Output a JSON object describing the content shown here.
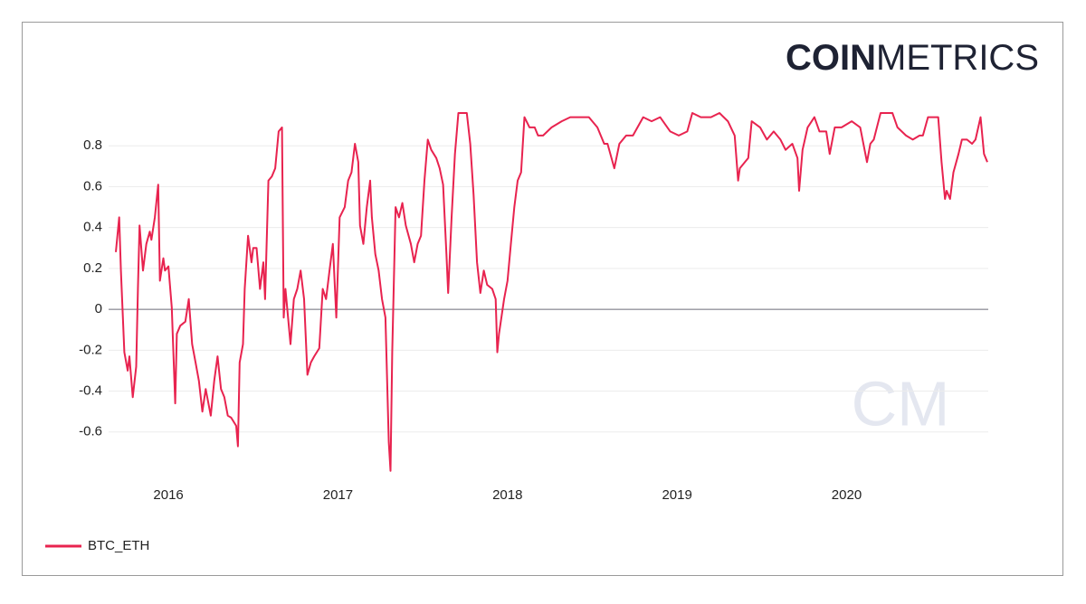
{
  "chart_data": {
    "type": "line",
    "logo": {
      "bold": "COIN",
      "light": "METRICS"
    },
    "watermark": "CM",
    "x": [
      2015.69,
      2015.71,
      2015.72,
      2015.74,
      2015.76,
      2015.77,
      2015.79,
      2015.81,
      2015.82,
      2015.83,
      2015.85,
      2015.87,
      2015.89,
      2015.9,
      2015.92,
      2015.94,
      2015.95,
      2015.97,
      2015.98,
      2016.0,
      2016.02,
      2016.04,
      2016.05,
      2016.07,
      2016.1,
      2016.12,
      2016.14,
      2016.16,
      2016.18,
      2016.2,
      2016.22,
      2016.25,
      2016.27,
      2016.29,
      2016.31,
      2016.33,
      2016.35,
      2016.37,
      2016.4,
      2016.41,
      2016.42,
      2016.44,
      2016.45,
      2016.47,
      2016.49,
      2016.5,
      2016.52,
      2016.54,
      2016.56,
      2016.57,
      2016.59,
      2016.61,
      2016.63,
      2016.65,
      2016.67,
      2016.68,
      2016.69,
      2016.72,
      2016.74,
      2016.76,
      2016.78,
      2016.8,
      2016.82,
      2016.84,
      2016.86,
      2016.89,
      2016.91,
      2016.93,
      2016.95,
      2016.97,
      2016.99,
      2017.01,
      2017.04,
      2017.06,
      2017.08,
      2017.1,
      2017.12,
      2017.13,
      2017.15,
      2017.17,
      2017.19,
      2017.2,
      2017.22,
      2017.24,
      2017.26,
      2017.28,
      2017.3,
      2017.31,
      2017.32,
      2017.34,
      2017.36,
      2017.38,
      2017.4,
      2017.43,
      2017.45,
      2017.47,
      2017.49,
      2017.51,
      2017.53,
      2017.55,
      2017.58,
      2017.6,
      2017.62,
      2017.64,
      2017.65,
      2017.67,
      2017.69,
      2017.71,
      2017.74,
      2017.76,
      2017.78,
      2017.8,
      2017.82,
      2017.84,
      2017.86,
      2017.88,
      2017.91,
      2017.93,
      2017.94,
      2017.95,
      2017.98,
      2018.0,
      2018.02,
      2018.04,
      2018.06,
      2018.08,
      2018.1,
      2018.13,
      2018.16,
      2018.18,
      2018.21,
      2018.26,
      2018.32,
      2018.37,
      2018.42,
      2018.48,
      2018.53,
      2018.57,
      2018.59,
      2018.63,
      2018.66,
      2018.7,
      2018.74,
      2018.8,
      2018.85,
      2018.9,
      2018.96,
      2019.01,
      2019.06,
      2019.09,
      2019.14,
      2019.2,
      2019.25,
      2019.3,
      2019.34,
      2019.36,
      2019.37,
      2019.4,
      2019.42,
      2019.44,
      2019.49,
      2019.53,
      2019.57,
      2019.61,
      2019.64,
      2019.68,
      2019.71,
      2019.72,
      2019.74,
      2019.77,
      2019.81,
      2019.84,
      2019.88,
      2019.9,
      2019.93,
      2019.97,
      2020.03,
      2020.08,
      2020.12,
      2020.14,
      2020.16,
      2020.2,
      2020.27,
      2020.3,
      2020.35,
      2020.39,
      2020.43,
      2020.45,
      2020.48,
      2020.54,
      2020.56,
      2020.58,
      2020.59,
      2020.61,
      2020.63,
      2020.66,
      2020.68,
      2020.71,
      2020.74,
      2020.76,
      2020.79,
      2020.81,
      2020.83
    ],
    "series": [
      {
        "name": "BTC_ETH",
        "color": "#e8234f",
        "values": [
          0.28,
          0.45,
          0.19,
          -0.21,
          -0.3,
          -0.23,
          -0.43,
          -0.28,
          0.1,
          0.41,
          0.19,
          0.32,
          0.38,
          0.34,
          0.45,
          0.61,
          0.14,
          0.25,
          0.19,
          0.21,
          0.01,
          -0.46,
          -0.12,
          -0.08,
          -0.06,
          0.05,
          -0.17,
          -0.26,
          -0.35,
          -0.5,
          -0.39,
          -0.52,
          -0.35,
          -0.23,
          -0.39,
          -0.43,
          -0.52,
          -0.53,
          -0.57,
          -0.67,
          -0.26,
          -0.17,
          0.1,
          0.36,
          0.23,
          0.3,
          0.3,
          0.1,
          0.23,
          0.05,
          0.63,
          0.65,
          0.69,
          0.87,
          0.89,
          -0.04,
          0.1,
          -0.17,
          0.05,
          0.1,
          0.19,
          0.05,
          -0.32,
          -0.26,
          -0.23,
          -0.19,
          0.1,
          0.05,
          0.19,
          0.32,
          -0.04,
          0.45,
          0.5,
          0.63,
          0.67,
          0.81,
          0.72,
          0.41,
          0.32,
          0.5,
          0.63,
          0.45,
          0.27,
          0.19,
          0.05,
          -0.04,
          -0.65,
          -0.79,
          -0.21,
          0.5,
          0.45,
          0.52,
          0.41,
          0.32,
          0.23,
          0.32,
          0.36,
          0.63,
          0.83,
          0.78,
          0.74,
          0.69,
          0.61,
          0.27,
          0.08,
          0.45,
          0.76,
          0.96,
          0.96,
          0.96,
          0.81,
          0.56,
          0.23,
          0.08,
          0.19,
          0.12,
          0.1,
          0.05,
          -0.21,
          -0.12,
          0.05,
          0.14,
          0.32,
          0.5,
          0.63,
          0.67,
          0.94,
          0.89,
          0.89,
          0.85,
          0.85,
          0.89,
          0.92,
          0.94,
          0.94,
          0.94,
          0.89,
          0.81,
          0.81,
          0.69,
          0.81,
          0.85,
          0.85,
          0.94,
          0.92,
          0.94,
          0.87,
          0.85,
          0.87,
          0.96,
          0.94,
          0.94,
          0.96,
          0.92,
          0.85,
          0.63,
          0.69,
          0.72,
          0.74,
          0.92,
          0.89,
          0.83,
          0.87,
          0.83,
          0.78,
          0.81,
          0.74,
          0.58,
          0.78,
          0.89,
          0.94,
          0.87,
          0.87,
          0.76,
          0.89,
          0.89,
          0.92,
          0.89,
          0.72,
          0.81,
          0.83,
          0.96,
          0.96,
          0.89,
          0.85,
          0.83,
          0.85,
          0.85,
          0.94,
          0.94,
          0.72,
          0.54,
          0.58,
          0.54,
          0.67,
          0.76,
          0.83,
          0.83,
          0.81,
          0.83,
          0.94,
          0.76,
          0.72
        ]
      }
    ],
    "xlim": [
      2015.69,
      2020.83
    ],
    "xticks": [
      2016,
      2017,
      2018,
      2019,
      2020
    ],
    "ylim": [
      -0.8,
      1.0
    ],
    "yticks": [
      -0.6,
      -0.4,
      -0.2,
      0,
      0.2,
      0.4,
      0.6,
      0.8
    ],
    "grid": true
  }
}
